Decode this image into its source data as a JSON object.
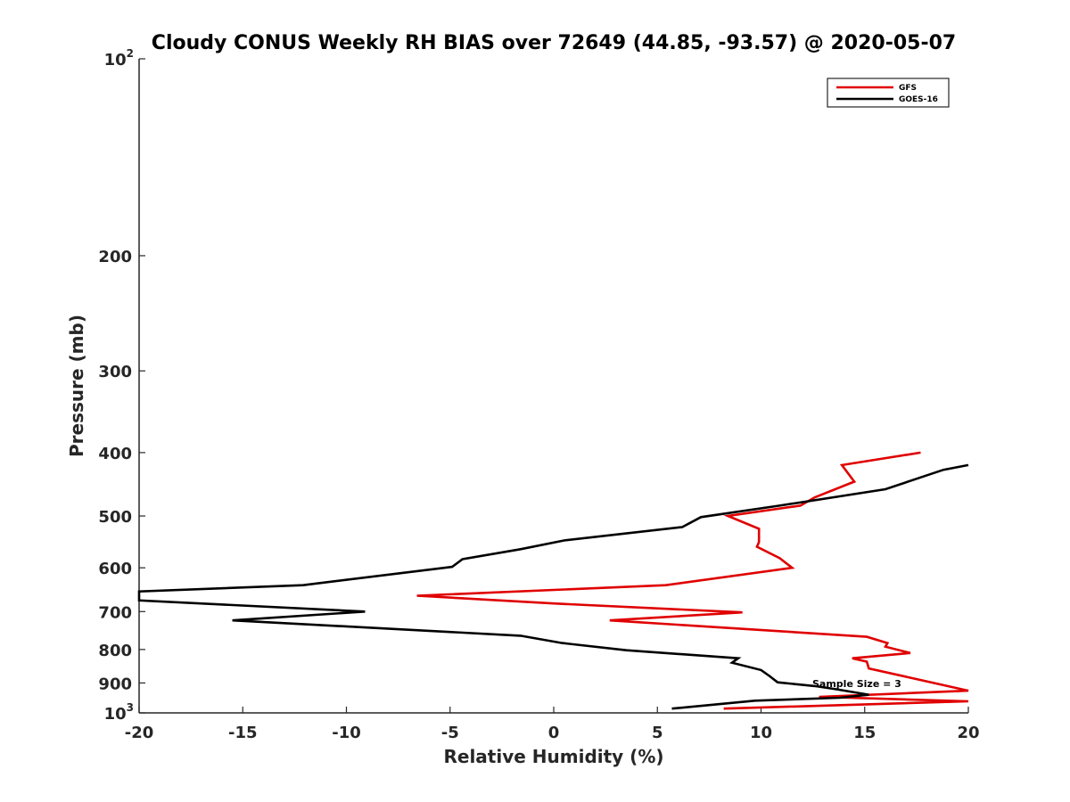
{
  "chart_data": {
    "type": "line",
    "title": "Cloudy CONUS Weekly RH BIAS over 72649 (44.85, -93.57) @ 2020-05-07",
    "xlabel": "Relative Humidity (%)",
    "ylabel": "Pressure (mb)",
    "xlim": [
      -20,
      20
    ],
    "ylim": [
      100,
      1000
    ],
    "y_scale": "log",
    "y_reversed": true,
    "grid": false,
    "legend_position": "top-right",
    "x_ticks": [
      "-20",
      "-15",
      "-10",
      "-5",
      "0",
      "5",
      "10",
      "15",
      "20"
    ],
    "y_ticks": [
      {
        "value": 100,
        "base": "10",
        "exp": "2"
      },
      {
        "value": 200,
        "label": "200"
      },
      {
        "value": 300,
        "label": "300"
      },
      {
        "value": 400,
        "label": "400"
      },
      {
        "value": 500,
        "label": "500"
      },
      {
        "value": 600,
        "label": "600"
      },
      {
        "value": 700,
        "label": "700"
      },
      {
        "value": 800,
        "label": "800"
      },
      {
        "value": 900,
        "label": "900"
      },
      {
        "value": 1000,
        "base": "10",
        "exp": "3"
      }
    ],
    "annotation": "Sample Size = 3",
    "series": [
      {
        "name": "GFS",
        "color": "#e00000",
        "points": [
          [
            17.7,
            400
          ],
          [
            13.9,
            418
          ],
          [
            14.5,
            443
          ],
          [
            12.6,
            468
          ],
          [
            11.9,
            482
          ],
          [
            8.4,
            500
          ],
          [
            9.9,
            523
          ],
          [
            9.9,
            548
          ],
          [
            9.8,
            557
          ],
          [
            10.9,
            580
          ],
          [
            11.5,
            600
          ],
          [
            5.4,
            638
          ],
          [
            -6.6,
            662
          ],
          [
            -0.1,
            680
          ],
          [
            9.1,
            702
          ],
          [
            2.7,
            722
          ],
          [
            15.1,
            765
          ],
          [
            16.1,
            782
          ],
          [
            16.0,
            792
          ],
          [
            17.2,
            810
          ],
          [
            14.4,
            825
          ],
          [
            15.1,
            835
          ],
          [
            15.2,
            855
          ],
          [
            20.0,
            925
          ],
          [
            12.8,
            945
          ],
          [
            20.0,
            960
          ],
          [
            8.2,
            985
          ]
        ]
      },
      {
        "name": "GOES-16",
        "color": "#000000",
        "points": [
          [
            20.0,
            418
          ],
          [
            18.8,
            425
          ],
          [
            16.0,
            455
          ],
          [
            10.9,
            482
          ],
          [
            7.1,
            502
          ],
          [
            6.2,
            520
          ],
          [
            0.5,
            545
          ],
          [
            -1.6,
            562
          ],
          [
            -4.4,
            582
          ],
          [
            -4.9,
            598
          ],
          [
            -12.1,
            638
          ],
          [
            -20.0,
            652
          ],
          [
            -20.0,
            673
          ],
          [
            -9.1,
            700
          ],
          [
            -15.5,
            722
          ],
          [
            -1.6,
            762
          ],
          [
            0.4,
            782
          ],
          [
            3.5,
            802
          ],
          [
            8.9,
            825
          ],
          [
            8.6,
            838
          ],
          [
            10.0,
            860
          ],
          [
            10.4,
            878
          ],
          [
            10.8,
            898
          ],
          [
            12.6,
            910
          ],
          [
            13.6,
            920
          ],
          [
            15.2,
            938
          ],
          [
            13.8,
            948
          ],
          [
            9.7,
            958
          ],
          [
            5.7,
            985
          ]
        ]
      }
    ]
  }
}
